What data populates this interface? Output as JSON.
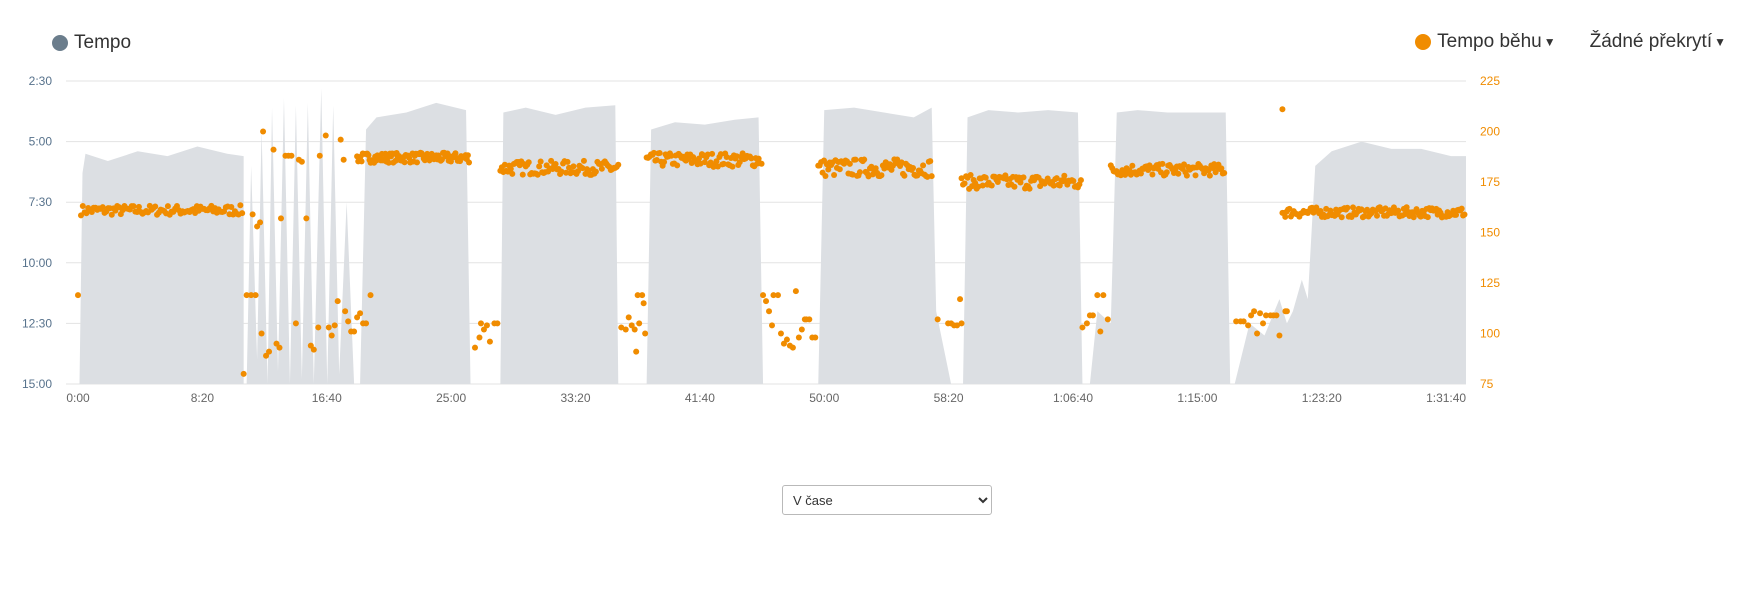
{
  "legend": {
    "left": {
      "label": "Tempo",
      "color": "#6b7d8c"
    },
    "right": [
      {
        "label": "Tempo běhu",
        "color": "#f08c00",
        "dropdown": true
      },
      {
        "label": "Žádné překrytí",
        "dropdown": true
      }
    ]
  },
  "select": {
    "value": "V čase",
    "options": [
      "V čase"
    ]
  },
  "colors": {
    "area": "#dcdfe3",
    "points": "#f08c00",
    "left_axis": "#57728c",
    "right_axis": "#f08c00",
    "grid": "#e3e3e3"
  },
  "chart_data": {
    "type": "area",
    "x_unit": "time (m:ss)",
    "x_range": [
      "0:00",
      "1:33:00"
    ],
    "x_ticks": [
      "0:00",
      "8:20",
      "16:40",
      "25:00",
      "33:20",
      "41:40",
      "50:00",
      "58:20",
      "1:06:40",
      "1:15:00",
      "1:23:20",
      "1:31:40"
    ],
    "y_left": {
      "label": "",
      "reversed": true,
      "ticks": [
        "2:30",
        "5:00",
        "7:30",
        "10:00",
        "12:30",
        "15:00"
      ],
      "range": [
        "2:30",
        "15:00"
      ]
    },
    "y_right": {
      "label": "",
      "ticks": [
        225,
        200,
        175,
        150,
        125,
        100,
        75
      ],
      "range": [
        75,
        225
      ]
    },
    "series": [
      {
        "name": "Tempo",
        "type": "area",
        "axis": "left",
        "segments": [
          {
            "x": [
              0.1,
              0.3,
              0.5,
              2,
              4,
              6,
              8,
              10,
              11.1
            ],
            "y": [
              15,
              6.3,
              5.5,
              5.8,
              5.4,
              5.6,
              5.2,
              5.5,
              5.6
            ]
          },
          {
            "x": [
              11.3,
              11.6,
              12,
              12.3,
              12.7,
              13,
              13.4,
              13.8,
              14.2,
              14.6,
              15,
              15.4,
              15.8,
              16.3,
              16.7,
              17.1,
              17.5,
              18,
              18.5
            ],
            "y": [
              15,
              6,
              14,
              4.5,
              15,
              3.6,
              14.5,
              3.2,
              15,
              3.5,
              14.8,
              3.4,
              15,
              2.8,
              15,
              3.5,
              14.6,
              7.5,
              15
            ]
          },
          {
            "x": [
              18.9,
              19.3,
              20,
              22,
              24,
              26,
              26.3
            ],
            "y": [
              15,
              4.5,
              4.0,
              3.8,
              3.4,
              3.7,
              15
            ]
          },
          {
            "x": [
              28.3,
              28.5,
              30,
              32,
              34,
              36,
              36.2
            ],
            "y": [
              15,
              3.8,
              3.6,
              3.9,
              3.6,
              3.5,
              15
            ]
          },
          {
            "x": [
              38.1,
              38.4,
              40,
              42,
              44,
              45.6,
              45.9
            ],
            "y": [
              15,
              4.5,
              4.2,
              4.3,
              4.1,
              4.0,
              15
            ]
          },
          {
            "x": [
              49.6,
              50,
              52,
              54,
              56,
              57.2,
              57.5,
              58.5
            ],
            "y": [
              15,
              3.7,
              3.6,
              3.8,
              4.0,
              3.6,
              12,
              15
            ]
          },
          {
            "x": [
              59.3,
              59.6,
              61,
              63,
              65,
              67,
              67.3
            ],
            "y": [
              15,
              4.0,
              3.7,
              3.8,
              3.7,
              3.8,
              15
            ]
          },
          {
            "x": [
              67.8,
              68.3,
              69.2,
              69.6,
              71,
              73,
              75,
              76.9,
              77.2
            ],
            "y": [
              15,
              12,
              12.5,
              3.8,
              3.7,
              3.8,
              3.8,
              3.8,
              15
            ]
          },
          {
            "x": [
              77.5,
              78.5,
              79.5,
              80.5,
              81,
              81.4,
              82,
              82.4,
              82.9,
              84,
              86,
              88,
              90,
              92,
              93
            ],
            "y": [
              15,
              12.5,
              13,
              11.5,
              12.5,
              12,
              10.7,
              11.5,
              6,
              5.4,
              5.0,
              5.3,
              5.3,
              5.6,
              5.6
            ]
          }
        ]
      },
      {
        "name": "Tempo běhu",
        "type": "scatter",
        "axis": "right",
        "segments": [
          {
            "x0": 0.2,
            "x1": 11,
            "mean": 161,
            "jitter": 2.5,
            "count": 90
          },
          {
            "x0": 18.7,
            "x1": 26.2,
            "mean": 187,
            "jitter": 2.5,
            "count": 100
          },
          {
            "x0": 28.3,
            "x1": 36.2,
            "mean": 182,
            "jitter": 3.5,
            "count": 80
          },
          {
            "x0": 38.1,
            "x1": 45.8,
            "mean": 186,
            "jitter": 3.5,
            "count": 80
          },
          {
            "x0": 49.6,
            "x1": 57.2,
            "mean": 182,
            "jitter": 4.5,
            "count": 80
          },
          {
            "x0": 59.2,
            "x1": 67.2,
            "mean": 175,
            "jitter": 3.5,
            "count": 80
          },
          {
            "x0": 69.2,
            "x1": 76.8,
            "mean": 181,
            "jitter": 3,
            "count": 80
          },
          {
            "x0": 80.7,
            "x1": 92.9,
            "mean": 160,
            "jitter": 2.5,
            "count": 130
          }
        ],
        "scattered": [
          [
            0,
            119
          ],
          [
            11.1,
            80
          ],
          [
            11.3,
            119
          ],
          [
            11.6,
            119
          ],
          [
            11.9,
            119
          ],
          [
            11.7,
            159
          ],
          [
            12,
            153
          ],
          [
            12.2,
            155
          ],
          [
            12.4,
            200
          ],
          [
            12.6,
            89
          ],
          [
            12.3,
            100
          ],
          [
            12.8,
            91
          ],
          [
            13.1,
            191
          ],
          [
            13.3,
            95
          ],
          [
            13.5,
            93
          ],
          [
            13.6,
            157
          ],
          [
            13.9,
            188
          ],
          [
            14.1,
            188
          ],
          [
            14.3,
            188
          ],
          [
            14.6,
            105
          ],
          [
            14.8,
            186
          ],
          [
            15.0,
            185
          ],
          [
            15.3,
            157
          ],
          [
            15.6,
            94
          ],
          [
            15.8,
            92
          ],
          [
            16.1,
            103
          ],
          [
            16.2,
            188
          ],
          [
            16.6,
            198
          ],
          [
            16.8,
            103
          ],
          [
            17.0,
            99
          ],
          [
            17.2,
            104
          ],
          [
            17.4,
            116
          ],
          [
            17.6,
            196
          ],
          [
            17.8,
            186
          ],
          [
            17.9,
            111
          ],
          [
            18.1,
            106
          ],
          [
            18.3,
            101
          ],
          [
            18.5,
            101
          ],
          [
            18.7,
            108
          ],
          [
            18.9,
            110
          ],
          [
            19.1,
            105
          ],
          [
            19.3,
            105
          ],
          [
            19.6,
            119
          ],
          [
            26.6,
            93
          ],
          [
            26.9,
            98
          ],
          [
            27.0,
            105
          ],
          [
            27.2,
            102
          ],
          [
            27.4,
            104
          ],
          [
            27.6,
            96
          ],
          [
            27.9,
            105
          ],
          [
            28.1,
            105
          ],
          [
            36.4,
            103
          ],
          [
            36.7,
            102
          ],
          [
            36.9,
            108
          ],
          [
            37.1,
            104
          ],
          [
            37.3,
            102
          ],
          [
            37.4,
            91
          ],
          [
            37.5,
            119
          ],
          [
            37.6,
            105
          ],
          [
            37.8,
            119
          ],
          [
            37.9,
            115
          ],
          [
            38.0,
            100
          ],
          [
            45.9,
            119
          ],
          [
            46.1,
            116
          ],
          [
            46.3,
            111
          ],
          [
            46.5,
            104
          ],
          [
            46.6,
            119
          ],
          [
            46.9,
            119
          ],
          [
            47.1,
            100
          ],
          [
            47.3,
            95
          ],
          [
            47.5,
            97
          ],
          [
            47.7,
            94
          ],
          [
            47.9,
            93
          ],
          [
            48.1,
            121
          ],
          [
            48.3,
            98
          ],
          [
            48.5,
            102
          ],
          [
            48.7,
            107
          ],
          [
            48.8,
            107
          ],
          [
            49.0,
            107
          ],
          [
            49.2,
            98
          ],
          [
            49.4,
            98
          ],
          [
            57.6,
            107
          ],
          [
            58.3,
            105
          ],
          [
            58.5,
            105
          ],
          [
            58.7,
            104
          ],
          [
            58.9,
            104
          ],
          [
            59.1,
            117
          ],
          [
            59.2,
            105
          ],
          [
            67.3,
            103
          ],
          [
            67.6,
            105
          ],
          [
            67.8,
            109
          ],
          [
            68.0,
            109
          ],
          [
            68.3,
            119
          ],
          [
            68.5,
            101
          ],
          [
            68.7,
            119
          ],
          [
            69.0,
            107
          ],
          [
            77.6,
            106
          ],
          [
            77.9,
            106
          ],
          [
            78.1,
            106
          ],
          [
            78.4,
            104
          ],
          [
            78.6,
            109
          ],
          [
            78.8,
            111
          ],
          [
            79.0,
            100
          ],
          [
            79.2,
            110
          ],
          [
            79.4,
            105
          ],
          [
            79.6,
            109
          ],
          [
            79.9,
            109
          ],
          [
            80.1,
            109
          ],
          [
            80.3,
            109
          ],
          [
            80.5,
            99
          ],
          [
            80.7,
            211
          ],
          [
            80.9,
            111
          ],
          [
            81.0,
            111
          ]
        ]
      }
    ]
  }
}
